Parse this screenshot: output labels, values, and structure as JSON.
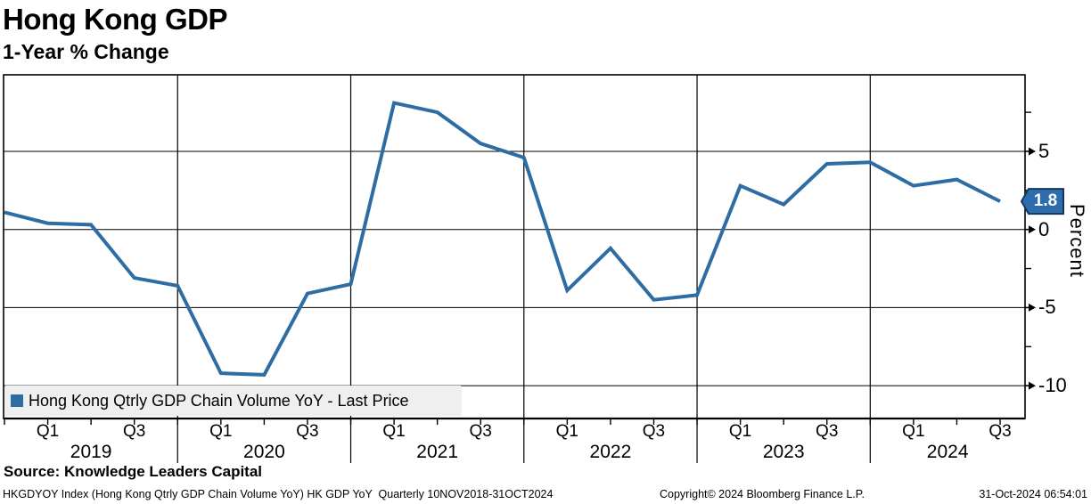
{
  "header": {
    "title": "Hong Kong GDP",
    "subtitle": "1-Year % Change"
  },
  "legend": {
    "label": "Hong Kong Qtrly GDP Chain Volume YoY - Last Price"
  },
  "source_line": "Source: Knowledge Leaders Capital",
  "footer": {
    "left": "HKGDYOY Index (Hong Kong Qtrly GDP Chain Volume YoY) HK GDP YoY  Quarterly 10NOV2018-31OCT2024",
    "center": "Copyright© 2024 Bloomberg Finance L.P.",
    "right": "31-Oct-2024 06:54:01"
  },
  "chart_data": {
    "type": "line",
    "title": "Hong Kong GDP",
    "subtitle": "1-Year % Change",
    "ylabel": "Percent",
    "x": [
      "2018 Q4",
      "2019 Q1",
      "2019 Q2",
      "2019 Q3",
      "2019 Q4",
      "2020 Q1",
      "2020 Q2",
      "2020 Q3",
      "2020 Q4",
      "2021 Q1",
      "2021 Q2",
      "2021 Q3",
      "2021 Q4",
      "2022 Q1",
      "2022 Q2",
      "2022 Q3",
      "2022 Q4",
      "2023 Q1",
      "2023 Q2",
      "2023 Q3",
      "2023 Q4",
      "2024 Q1",
      "2024 Q2",
      "2024 Q3"
    ],
    "series": [
      {
        "name": "Hong Kong Qtrly GDP Chain Volume YoY - Last Price",
        "values": [
          1.1,
          0.4,
          0.3,
          -3.1,
          -3.6,
          -9.2,
          -9.3,
          -4.1,
          -3.5,
          8.1,
          7.5,
          5.5,
          4.6,
          -3.9,
          -1.2,
          -4.5,
          -4.2,
          2.8,
          1.6,
          4.2,
          4.3,
          2.8,
          3.2,
          1.8
        ]
      }
    ],
    "last_price": "1.8",
    "y_ticks": [
      5,
      0,
      -5,
      -10
    ],
    "y_minor_ticks": [
      7.5,
      2.5,
      -2.5,
      -7.5
    ],
    "ylim": [
      -12.1,
      9.9
    ],
    "year_labels": [
      "2019",
      "2020",
      "2021",
      "2022",
      "2023",
      "2024"
    ],
    "quarter_labels_shown": [
      "Q1",
      "Q3"
    ],
    "grid": true,
    "legend_position": "bottom-left",
    "colors": {
      "line": "#2e6da4",
      "badge_fill": "#2d6dad",
      "badge_border": "#17365d",
      "grid": "#000000",
      "legend_bg": "#efefef"
    }
  }
}
